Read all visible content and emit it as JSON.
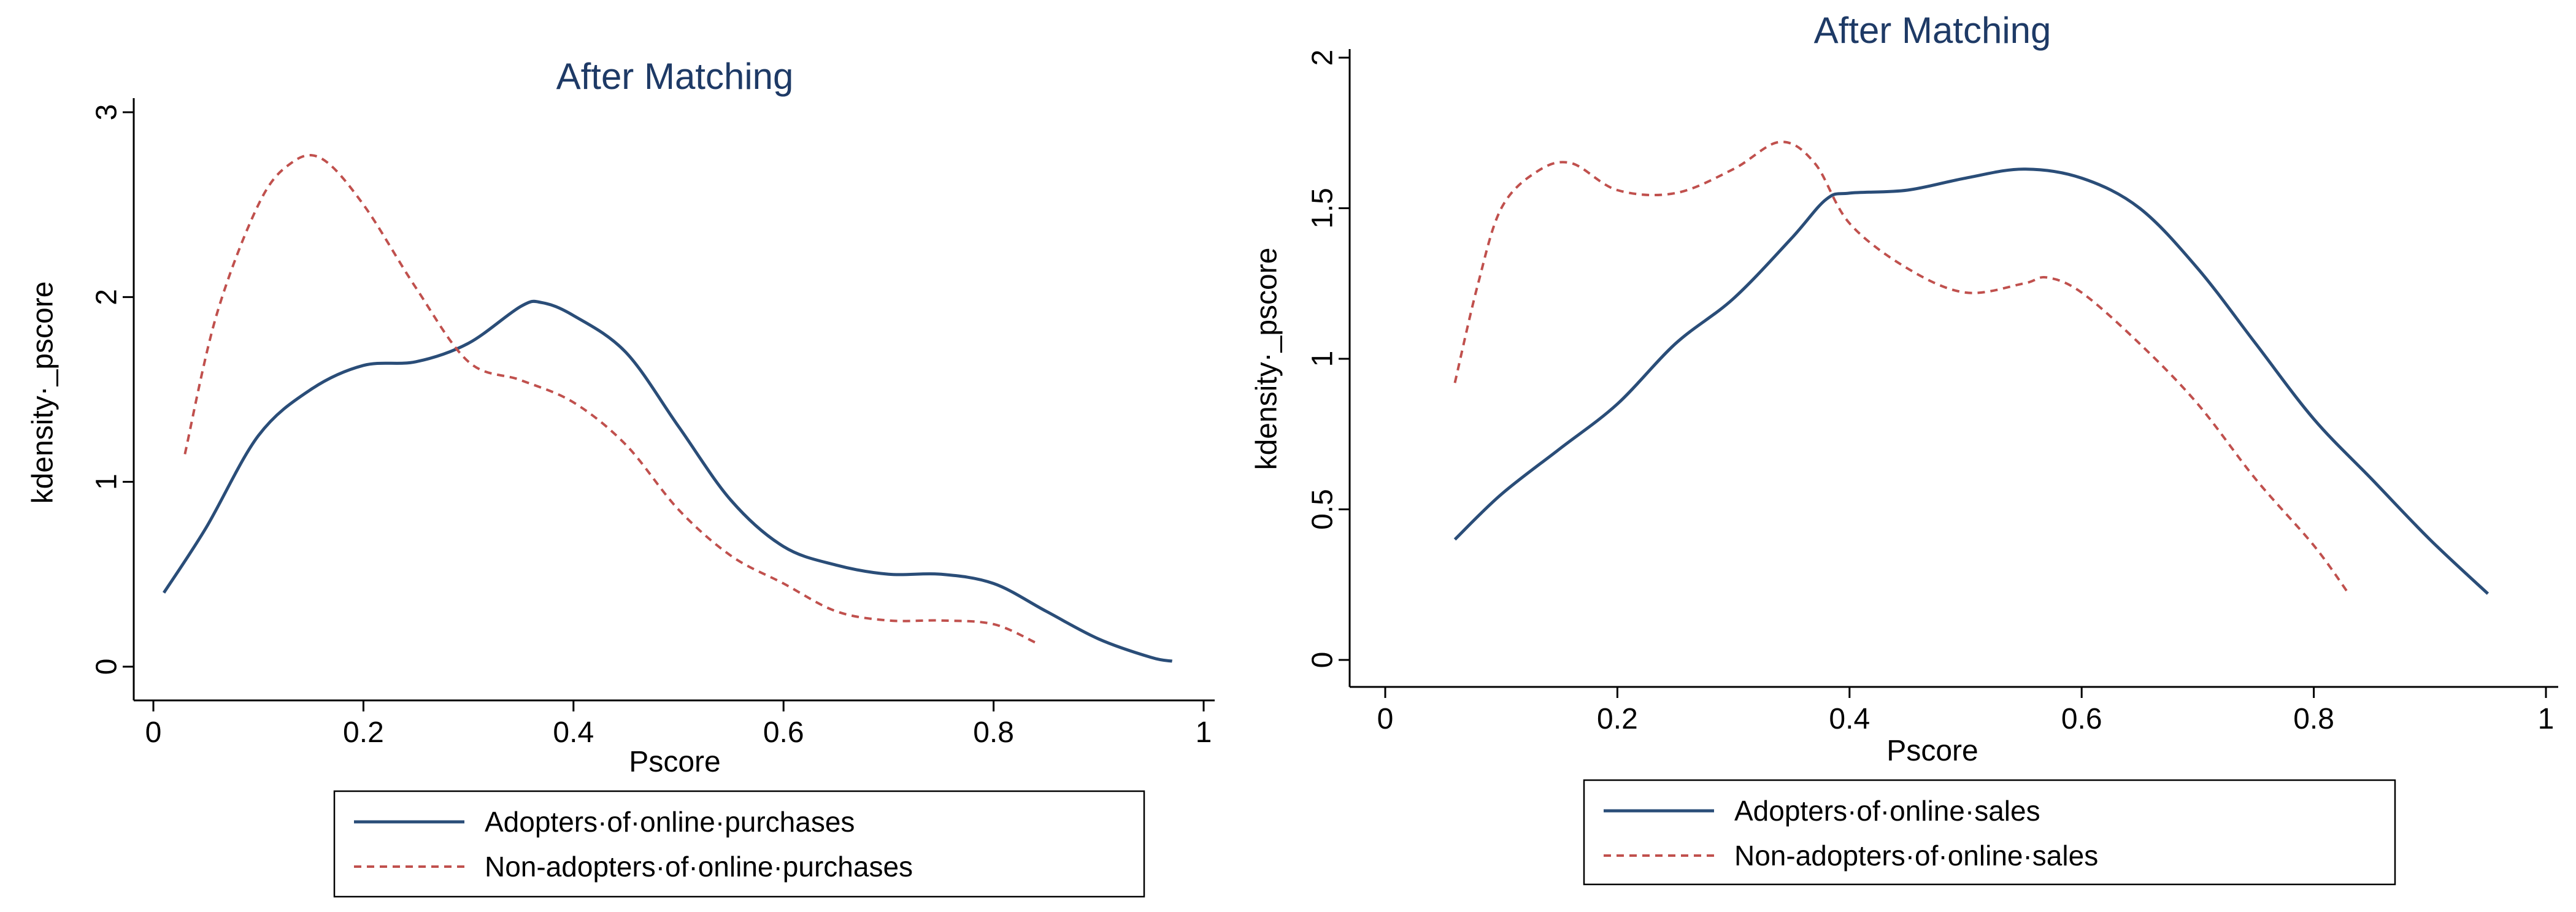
{
  "chart_data": [
    {
      "type": "line",
      "title": "After Matching",
      "xlabel": "Pscore",
      "ylabel": "kdensity _pscore",
      "xlim": [
        0,
        1
      ],
      "ylim": [
        0,
        3
      ],
      "xticks": [
        0,
        0.2,
        0.4,
        0.6,
        0.8,
        1
      ],
      "xtick_labels": [
        "0",
        "0.2",
        "0.4",
        "0.6",
        "0.8",
        "1"
      ],
      "yticks": [
        0,
        1,
        2,
        3
      ],
      "ytick_labels": [
        "0",
        "1",
        "2",
        "3"
      ],
      "legend_position": "bottom",
      "series": [
        {
          "name": "Adopters of online purchases",
          "color": "#2a4d78",
          "dash": "solid",
          "x": [
            0.01,
            0.05,
            0.1,
            0.15,
            0.2,
            0.25,
            0.3,
            0.35,
            0.37,
            0.4,
            0.45,
            0.5,
            0.55,
            0.6,
            0.65,
            0.7,
            0.75,
            0.8,
            0.85,
            0.9,
            0.95,
            0.97
          ],
          "y": [
            0.4,
            0.75,
            1.25,
            1.5,
            1.63,
            1.65,
            1.75,
            1.95,
            1.97,
            1.9,
            1.7,
            1.3,
            0.9,
            0.65,
            0.55,
            0.5,
            0.5,
            0.45,
            0.3,
            0.15,
            0.05,
            0.03
          ]
        },
        {
          "name": "Non-adopters of online purchases",
          "color": "#c0504d",
          "dash": "dashed",
          "x": [
            0.03,
            0.06,
            0.1,
            0.13,
            0.16,
            0.2,
            0.25,
            0.3,
            0.35,
            0.4,
            0.45,
            0.5,
            0.55,
            0.6,
            0.65,
            0.7,
            0.75,
            0.8,
            0.84
          ],
          "y": [
            1.15,
            1.9,
            2.5,
            2.72,
            2.75,
            2.5,
            2.05,
            1.65,
            1.55,
            1.43,
            1.2,
            0.85,
            0.6,
            0.45,
            0.3,
            0.25,
            0.25,
            0.23,
            0.13
          ]
        }
      ]
    },
    {
      "type": "line",
      "title": "After Matching",
      "xlabel": "Pscore",
      "ylabel": "kdensity _pscore",
      "xlim": [
        0,
        1
      ],
      "ylim": [
        0,
        2
      ],
      "xticks": [
        0,
        0.2,
        0.4,
        0.6,
        0.8,
        1
      ],
      "xtick_labels": [
        "0",
        "0.2",
        "0.4",
        "0.6",
        "0.8",
        "1"
      ],
      "yticks": [
        0,
        0.5,
        1,
        1.5,
        2
      ],
      "ytick_labels": [
        "0",
        "0.5",
        "1",
        "1.5",
        "2"
      ],
      "legend_position": "bottom",
      "series": [
        {
          "name": "Adopters of online sales",
          "color": "#2a4d78",
          "dash": "solid",
          "x": [
            0.06,
            0.1,
            0.15,
            0.2,
            0.25,
            0.3,
            0.35,
            0.38,
            0.4,
            0.45,
            0.5,
            0.55,
            0.6,
            0.65,
            0.7,
            0.75,
            0.8,
            0.85,
            0.9,
            0.95
          ],
          "y": [
            0.4,
            0.55,
            0.7,
            0.85,
            1.05,
            1.2,
            1.4,
            1.53,
            1.55,
            1.56,
            1.6,
            1.63,
            1.6,
            1.5,
            1.3,
            1.05,
            0.8,
            0.6,
            0.4,
            0.22
          ]
        },
        {
          "name": "Non-adopters of online sales",
          "color": "#c0504d",
          "dash": "dashed",
          "x": [
            0.06,
            0.08,
            0.1,
            0.13,
            0.16,
            0.2,
            0.25,
            0.3,
            0.34,
            0.37,
            0.4,
            0.45,
            0.5,
            0.55,
            0.57,
            0.6,
            0.65,
            0.7,
            0.75,
            0.8,
            0.83
          ],
          "y": [
            0.92,
            1.25,
            1.5,
            1.62,
            1.65,
            1.56,
            1.55,
            1.63,
            1.72,
            1.65,
            1.45,
            1.3,
            1.22,
            1.25,
            1.27,
            1.22,
            1.05,
            0.85,
            0.6,
            0.38,
            0.22
          ]
        }
      ]
    }
  ]
}
